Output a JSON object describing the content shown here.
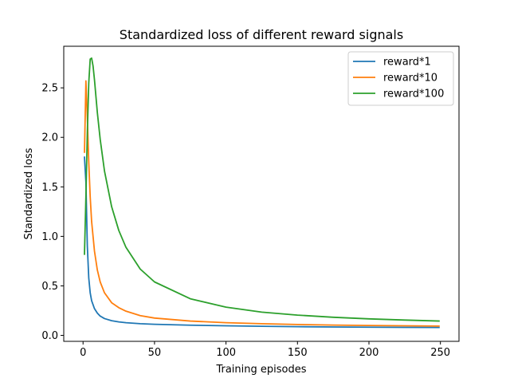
{
  "chart_data": {
    "type": "line",
    "title": "Standardized loss of different reward signals",
    "xlabel": "Training episodes",
    "ylabel": "Standardized loss",
    "xlim": [
      -13.5,
      263.0
    ],
    "ylim": [
      -0.06,
      2.92
    ],
    "x_ticks": [
      0,
      50,
      100,
      150,
      200,
      250
    ],
    "x_tick_labels": [
      "0",
      "50",
      "100",
      "150",
      "200",
      "250"
    ],
    "y_ticks": [
      0.0,
      0.5,
      1.0,
      1.5,
      2.0,
      2.5
    ],
    "y_tick_labels": [
      "0.0",
      "0.5",
      "1.0",
      "1.5",
      "2.0",
      "2.5"
    ],
    "grid": false,
    "legend_position": "upper right",
    "series": [
      {
        "name": "reward*1",
        "color": "#1f77b4",
        "x": [
          1,
          2,
          3,
          4,
          5,
          6,
          8,
          10,
          12,
          15,
          20,
          25,
          30,
          40,
          50,
          75,
          100,
          125,
          150,
          175,
          200,
          225,
          249
        ],
        "y": [
          1.8,
          1.55,
          0.9,
          0.58,
          0.43,
          0.35,
          0.27,
          0.225,
          0.195,
          0.17,
          0.148,
          0.136,
          0.128,
          0.118,
          0.112,
          0.103,
          0.097,
          0.092,
          0.088,
          0.085,
          0.083,
          0.081,
          0.08
        ]
      },
      {
        "name": "reward*10",
        "color": "#ff7f0e",
        "x": [
          1,
          2,
          3,
          4,
          5,
          6,
          8,
          10,
          12,
          15,
          20,
          25,
          30,
          40,
          50,
          75,
          100,
          125,
          150,
          175,
          200,
          225,
          249
        ],
        "y": [
          1.85,
          2.57,
          2.2,
          1.75,
          1.4,
          1.15,
          0.85,
          0.66,
          0.54,
          0.43,
          0.33,
          0.28,
          0.245,
          0.2,
          0.175,
          0.145,
          0.128,
          0.118,
          0.11,
          0.104,
          0.1,
          0.097,
          0.094
        ]
      },
      {
        "name": "reward*100",
        "color": "#2ca02c",
        "x": [
          1,
          2,
          3,
          4,
          5,
          6,
          7,
          8,
          10,
          12,
          15,
          20,
          25,
          30,
          40,
          50,
          75,
          100,
          125,
          150,
          175,
          200,
          225,
          249
        ],
        "y": [
          0.82,
          1.4,
          2.05,
          2.55,
          2.79,
          2.8,
          2.72,
          2.58,
          2.25,
          1.98,
          1.66,
          1.3,
          1.06,
          0.89,
          0.67,
          0.54,
          0.37,
          0.285,
          0.235,
          0.205,
          0.183,
          0.167,
          0.155,
          0.145
        ]
      }
    ]
  }
}
